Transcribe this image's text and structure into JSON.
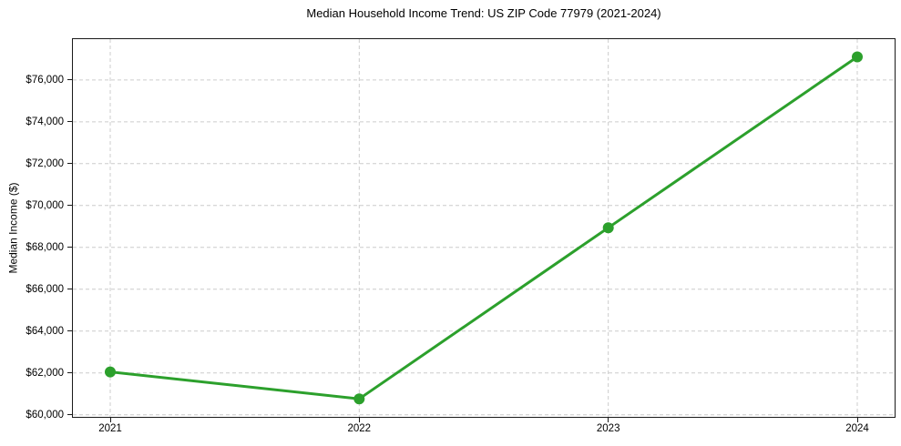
{
  "chart_data": {
    "type": "line",
    "title": "Median Household Income Trend: US ZIP Code 77979 (2021-2024)",
    "xlabel": "",
    "ylabel": "Median Income ($)",
    "categories": [
      "2021",
      "2022",
      "2023",
      "2024"
    ],
    "values": [
      62050,
      60760,
      68940,
      77100
    ],
    "xlim": [
      2020.85,
      2024.15
    ],
    "ylim": [
      59900,
      77950
    ],
    "yticks": [
      60000,
      62000,
      64000,
      66000,
      68000,
      70000,
      72000,
      74000,
      76000
    ],
    "ytick_labels": [
      "$60,000",
      "$62,000",
      "$64,000",
      "$66,000",
      "$68,000",
      "$70,000",
      "$72,000",
      "$74,000",
      "$76,000"
    ],
    "xtick_labels": [
      "2021",
      "2022",
      "2023",
      "2024"
    ],
    "grid": true,
    "grid_style": "dashed",
    "legend": "none",
    "marker": "circle",
    "style": {
      "line_color": "#2ca02c",
      "marker_color": "#2ca02c",
      "grid_color": "#cccccc",
      "axis_color": "#1a1a1a",
      "text_color": "#000000",
      "background_color": "#ffffff"
    }
  }
}
